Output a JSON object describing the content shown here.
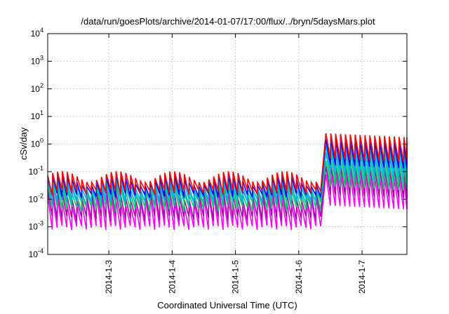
{
  "chart_data": {
    "type": "line",
    "title": "/data/run/goesPlots/archive/2014-01-07/17:00/flux/../bryn/5daysMars.plot",
    "xlabel": "Coordinated Universal Time (UTC)",
    "ylabel": "cSv/day",
    "y_scale": "log",
    "ylim": [
      0.0001,
      10000
    ],
    "y_ticks": [
      {
        "value": 0.0001,
        "base": "10",
        "exp": "-4"
      },
      {
        "value": 0.001,
        "base": "10",
        "exp": "-3"
      },
      {
        "value": 0.01,
        "base": "10",
        "exp": "-2"
      },
      {
        "value": 0.1,
        "base": "10",
        "exp": "-1"
      },
      {
        "value": 1,
        "base": "10",
        "exp": "0"
      },
      {
        "value": 10,
        "base": "10",
        "exp": "1"
      },
      {
        "value": 100,
        "base": "10",
        "exp": "2"
      },
      {
        "value": 1000,
        "base": "10",
        "exp": "3"
      },
      {
        "value": 10000,
        "base": "10",
        "exp": "4"
      }
    ],
    "xlim": [
      "2014-01-02 00:50",
      "2014-01-07 17:00"
    ],
    "x_ticks": [
      "2014-1-3",
      "2014-1-4",
      "2014-1-5",
      "2014-1-6",
      "2014-1-7"
    ],
    "grid": true,
    "legend": "none",
    "series_colors": [
      "#ff0000",
      "#0000ff",
      "#00aaff",
      "#00bbaa",
      "#00cc66",
      "#aa00aa",
      "#ff00ff"
    ],
    "cycle_hours": 1.85,
    "event_start": "2014-01-06 09:00",
    "event_drop": "2014-01-06 08:10",
    "quiet_peaks": [
      0.09,
      0.065,
      0.05,
      0.038,
      0.03,
      0.02,
      0.012
    ],
    "quiet_troughs": [
      0.02,
      0.015,
      0.01,
      0.008,
      0.005,
      0.0022,
      0.001
    ],
    "event_peaks": [
      2.5,
      1.5,
      0.9,
      0.5,
      0.25,
      0.16,
      0.08
    ],
    "event_troughs": [
      0.3,
      0.18,
      0.1,
      0.055,
      0.03,
      0.015,
      0.006
    ],
    "event_decay": 0.12
  }
}
